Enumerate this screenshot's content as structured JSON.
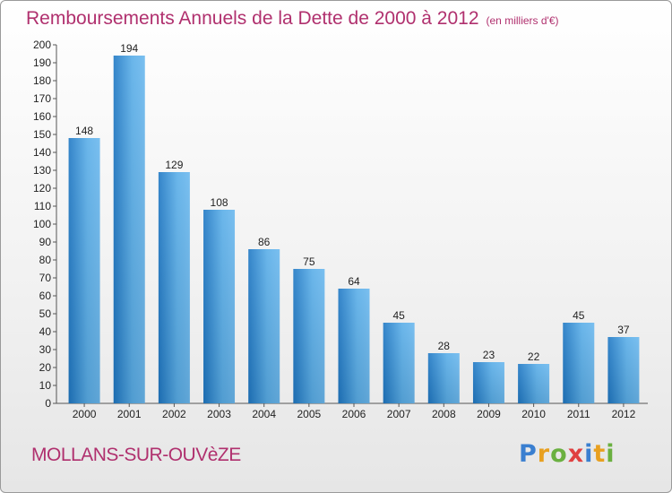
{
  "title": "Remboursements Annuels de la Dette de 2000 à 2012",
  "unit_note": "(en milliers d'€)",
  "place": "MOLLANS-SUR-OUVèZE",
  "logo": {
    "text": "Proxiti",
    "letters": [
      "P",
      "r",
      "o",
      "x",
      "i",
      "t",
      "i"
    ],
    "colors": [
      "#3a7fd0",
      "#e8a020",
      "#6ab040",
      "#e04040",
      "#3a7fd0",
      "#e8a020",
      "#6ab040"
    ]
  },
  "colors": {
    "title": "#b0306e",
    "bar_dark": "#1f78c4",
    "bar_light": "#5aaee8"
  },
  "chart_data": {
    "type": "bar",
    "categories": [
      "2000",
      "2001",
      "2002",
      "2003",
      "2004",
      "2005",
      "2006",
      "2007",
      "2008",
      "2009",
      "2010",
      "2011",
      "2012"
    ],
    "values": [
      148,
      194,
      129,
      108,
      86,
      75,
      64,
      45,
      28,
      23,
      22,
      45,
      37
    ],
    "ylim": [
      0,
      200
    ],
    "ytick_step": 10,
    "grid": false
  }
}
